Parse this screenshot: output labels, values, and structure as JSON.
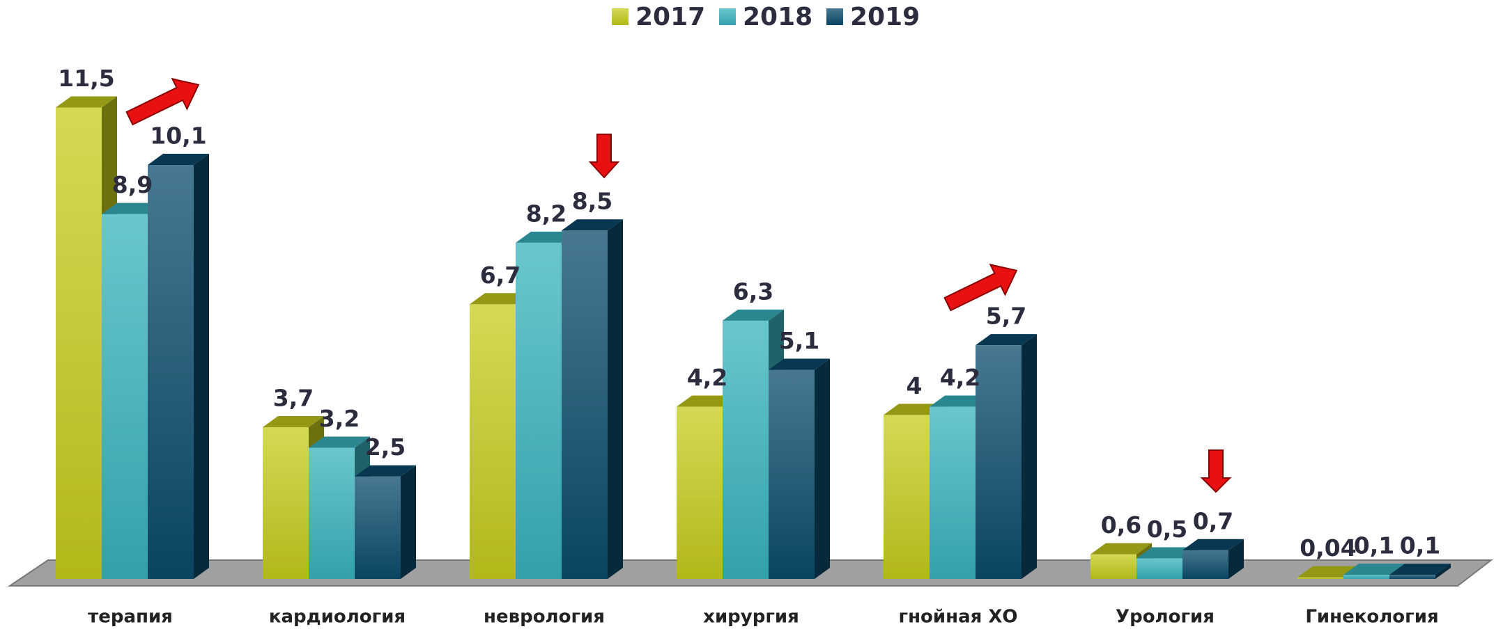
{
  "chart_data": {
    "type": "bar3d",
    "categories": [
      "терапия",
      "кардиология",
      "неврология",
      "хирургия",
      "гнойная ХО",
      "Урология",
      "Гинекология"
    ],
    "series": [
      {
        "name": "2017",
        "color": "#c5cc1c",
        "values": [
          11.5,
          3.7,
          6.7,
          4.2,
          4,
          0.6,
          0.04
        ],
        "value_labels": [
          "11,5",
          "3,7",
          "6,7",
          "4,2",
          "4",
          "0,6",
          "0,04"
        ]
      },
      {
        "name": "2018",
        "color": "#38b3be",
        "values": [
          8.9,
          3.2,
          8.2,
          6.3,
          4.2,
          0.5,
          0.1
        ],
        "value_labels": [
          "8,9",
          "3,2",
          "8,2",
          "6,3",
          "4,2",
          "0,5",
          "0,1"
        ]
      },
      {
        "name": "2019",
        "color": "#0b4b6c",
        "values": [
          10.1,
          2.5,
          8.5,
          5.1,
          5.7,
          0.7,
          0.1
        ],
        "value_labels": [
          "10,1",
          "2,5",
          "8,5",
          "5,1",
          "5,7",
          "0,7",
          "0,1"
        ]
      }
    ],
    "ylim": [
      0,
      12
    ],
    "legend": "top"
  }
}
